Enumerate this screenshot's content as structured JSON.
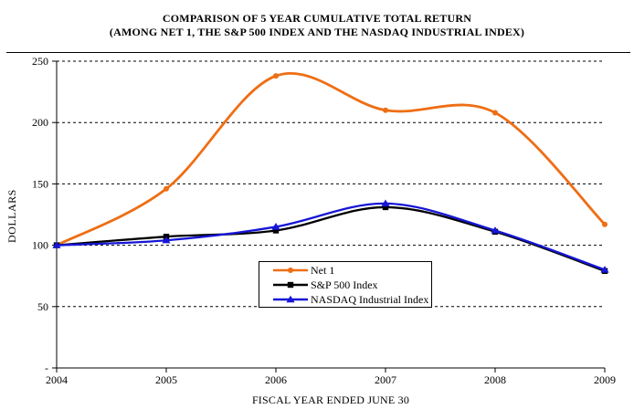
{
  "title": {
    "line1": "COMPARISON OF 5 YEAR CUMULATIVE TOTAL RETURN",
    "line2": "(AMONG NET 1, THE S&P 500 INDEX AND THE NASDAQ INDUSTRIAL INDEX)"
  },
  "chart_data": {
    "type": "line",
    "smoothed": true,
    "title": "COMPARISON OF 5 YEAR CUMULATIVE TOTAL RETURN (AMONG NET 1, THE S&P 500 INDEX AND THE NASDAQ INDUSTRIAL INDEX)",
    "xlabel": "FISCAL YEAR ENDED JUNE 30",
    "ylabel": "DOLLARS",
    "categories": [
      "2004",
      "2005",
      "2006",
      "2007",
      "2008",
      "2009"
    ],
    "series": [
      {
        "name": "Net 1",
        "color": "#EE6E14",
        "marker": "circle",
        "values": [
          100,
          146,
          238,
          210,
          208,
          117
        ]
      },
      {
        "name": "S&P 500 Index",
        "color": "#000000",
        "marker": "square",
        "values": [
          100,
          107,
          112,
          131,
          111,
          79
        ]
      },
      {
        "name": "NASDAQ Industrial Index",
        "color": "#1616D6",
        "marker": "triangle",
        "values": [
          100,
          104,
          115,
          134,
          112,
          80
        ]
      }
    ],
    "ylim": [
      0,
      250
    ],
    "y_ticks": [
      {
        "value": 0,
        "label": "-"
      },
      {
        "value": 50,
        "label": "50"
      },
      {
        "value": 100,
        "label": "100"
      },
      {
        "value": 150,
        "label": "150"
      },
      {
        "value": 200,
        "label": "200"
      },
      {
        "value": 250,
        "label": "250"
      }
    ],
    "grid": "horizontal-dashed",
    "legend_position": "inside-bottom-center"
  }
}
